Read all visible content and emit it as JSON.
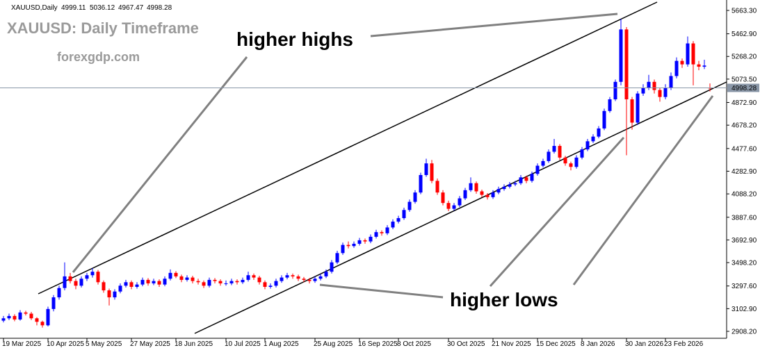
{
  "chart_data": {
    "type": "candlestick",
    "symbol": "XAUUSD,Daily",
    "title": "XAUUSD: Daily Timeframe",
    "subtitle": "forexgdp.com",
    "annotations": [
      "higher highs",
      "higher lows"
    ],
    "up_color": "#0000ff",
    "down_color": "#ff0000",
    "candles": [
      [
        3000,
        3040,
        2985,
        3020
      ],
      [
        3020,
        3060,
        3005,
        3040
      ],
      [
        3040,
        3055,
        2995,
        3010
      ],
      [
        3010,
        3090,
        3000,
        3070
      ],
      [
        3070,
        3085,
        3045,
        3060
      ],
      [
        3060,
        3075,
        3005,
        3020
      ],
      [
        3020,
        3030,
        2960,
        2990
      ],
      [
        2990,
        3000,
        2940,
        2960
      ],
      [
        2960,
        3120,
        2950,
        3100
      ],
      [
        3100,
        3220,
        3080,
        3200
      ],
      [
        3200,
        3300,
        3180,
        3280
      ],
      [
        3280,
        3500,
        3260,
        3380
      ],
      [
        3380,
        3410,
        3320,
        3340
      ],
      [
        3340,
        3360,
        3270,
        3300
      ],
      [
        3300,
        3380,
        3285,
        3360
      ],
      [
        3360,
        3410,
        3340,
        3390
      ],
      [
        3390,
        3450,
        3370,
        3420
      ],
      [
        3420,
        3435,
        3310,
        3330
      ],
      [
        3330,
        3345,
        3240,
        3260
      ],
      [
        3260,
        3275,
        3130,
        3200
      ],
      [
        3200,
        3270,
        3180,
        3250
      ],
      [
        3250,
        3320,
        3235,
        3300
      ],
      [
        3300,
        3350,
        3285,
        3330
      ],
      [
        3330,
        3345,
        3270,
        3290
      ],
      [
        3290,
        3330,
        3275,
        3310
      ],
      [
        3310,
        3370,
        3295,
        3350
      ],
      [
        3350,
        3365,
        3300,
        3320
      ],
      [
        3320,
        3360,
        3305,
        3340
      ],
      [
        3340,
        3355,
        3290,
        3310
      ],
      [
        3310,
        3380,
        3295,
        3360
      ],
      [
        3360,
        3440,
        3345,
        3410
      ],
      [
        3410,
        3425,
        3365,
        3380
      ],
      [
        3380,
        3395,
        3330,
        3350
      ],
      [
        3350,
        3390,
        3335,
        3370
      ],
      [
        3370,
        3385,
        3320,
        3340
      ],
      [
        3340,
        3360,
        3310,
        3330
      ],
      [
        3330,
        3345,
        3280,
        3300
      ],
      [
        3300,
        3370,
        3285,
        3350
      ],
      [
        3350,
        3365,
        3320,
        3340
      ],
      [
        3340,
        3355,
        3300,
        3320
      ],
      [
        3320,
        3345,
        3300,
        3320
      ],
      [
        3320,
        3360,
        3305,
        3340
      ],
      [
        3340,
        3355,
        3310,
        3330
      ],
      [
        3330,
        3370,
        3315,
        3350
      ],
      [
        3350,
        3420,
        3335,
        3390
      ],
      [
        3390,
        3405,
        3350,
        3370
      ],
      [
        3370,
        3385,
        3310,
        3330
      ],
      [
        3330,
        3345,
        3270,
        3290
      ],
      [
        3290,
        3320,
        3275,
        3300
      ],
      [
        3300,
        3360,
        3285,
        3340
      ],
      [
        3340,
        3390,
        3325,
        3370
      ],
      [
        3370,
        3410,
        3355,
        3390
      ],
      [
        3390,
        3405,
        3360,
        3380
      ],
      [
        3380,
        3395,
        3340,
        3360
      ],
      [
        3360,
        3375,
        3330,
        3350
      ],
      [
        3350,
        3365,
        3320,
        3340
      ],
      [
        3340,
        3380,
        3325,
        3360
      ],
      [
        3360,
        3400,
        3345,
        3380
      ],
      [
        3380,
        3440,
        3365,
        3420
      ],
      [
        3420,
        3520,
        3405,
        3500
      ],
      [
        3500,
        3600,
        3485,
        3580
      ],
      [
        3580,
        3670,
        3565,
        3650
      ],
      [
        3650,
        3680,
        3620,
        3640
      ],
      [
        3640,
        3680,
        3625,
        3660
      ],
      [
        3660,
        3710,
        3645,
        3690
      ],
      [
        3690,
        3705,
        3660,
        3680
      ],
      [
        3680,
        3740,
        3665,
        3720
      ],
      [
        3720,
        3780,
        3705,
        3760
      ],
      [
        3760,
        3775,
        3730,
        3750
      ],
      [
        3750,
        3820,
        3735,
        3800
      ],
      [
        3800,
        3870,
        3785,
        3850
      ],
      [
        3850,
        3900,
        3835,
        3880
      ],
      [
        3880,
        3970,
        3865,
        3950
      ],
      [
        3950,
        4040,
        3935,
        4020
      ],
      [
        4020,
        4120,
        4005,
        4100
      ],
      [
        4100,
        4270,
        4085,
        4250
      ],
      [
        4250,
        4390,
        4235,
        4350
      ],
      [
        4350,
        4380,
        4180,
        4200
      ],
      [
        4200,
        4220,
        4080,
        4100
      ],
      [
        4100,
        4120,
        3990,
        4010
      ],
      [
        4010,
        4030,
        3940,
        3960
      ],
      [
        3960,
        4010,
        3945,
        3990
      ],
      [
        3990,
        4070,
        3975,
        4050
      ],
      [
        4050,
        4140,
        4035,
        4120
      ],
      [
        4120,
        4230,
        4105,
        4180
      ],
      [
        4180,
        4195,
        4090,
        4110
      ],
      [
        4110,
        4125,
        4060,
        4080
      ],
      [
        4080,
        4095,
        4040,
        4060
      ],
      [
        4060,
        4120,
        4045,
        4100
      ],
      [
        4100,
        4150,
        4085,
        4130
      ],
      [
        4130,
        4170,
        4115,
        4150
      ],
      [
        4150,
        4190,
        4135,
        4170
      ],
      [
        4170,
        4200,
        4155,
        4180
      ],
      [
        4180,
        4250,
        4165,
        4230
      ],
      [
        4230,
        4245,
        4180,
        4200
      ],
      [
        4200,
        4280,
        4185,
        4260
      ],
      [
        4260,
        4350,
        4245,
        4330
      ],
      [
        4330,
        4390,
        4315,
        4370
      ],
      [
        4370,
        4470,
        4355,
        4450
      ],
      [
        4450,
        4560,
        4435,
        4500
      ],
      [
        4500,
        4515,
        4380,
        4400
      ],
      [
        4400,
        4415,
        4330,
        4350
      ],
      [
        4350,
        4365,
        4290,
        4320
      ],
      [
        4320,
        4420,
        4305,
        4400
      ],
      [
        4400,
        4490,
        4385,
        4470
      ],
      [
        4470,
        4560,
        4455,
        4540
      ],
      [
        4540,
        4600,
        4525,
        4580
      ],
      [
        4580,
        4670,
        4565,
        4650
      ],
      [
        4650,
        4820,
        4635,
        4800
      ],
      [
        4800,
        4920,
        4785,
        4900
      ],
      [
        4900,
        5070,
        4885,
        5050
      ],
      [
        5050,
        5590,
        5020,
        5500
      ],
      [
        5500,
        5520,
        4420,
        4900
      ],
      [
        4900,
        4920,
        4640,
        4700
      ],
      [
        4700,
        4970,
        4680,
        4950
      ],
      [
        4950,
        5030,
        4930,
        5000
      ],
      [
        5000,
        5110,
        4980,
        5050
      ],
      [
        5050,
        5070,
        4950,
        4980
      ],
      [
        4980,
        5000,
        4880,
        4920
      ],
      [
        4920,
        5030,
        4900,
        5000
      ],
      [
        5000,
        5130,
        4980,
        5100
      ],
      [
        5100,
        5260,
        5080,
        5230
      ],
      [
        5230,
        5250,
        5170,
        5200
      ],
      [
        5200,
        5440,
        5180,
        5380
      ],
      [
        5380,
        5400,
        5020,
        5200
      ],
      [
        5200,
        5230,
        5150,
        5180
      ],
      [
        5180,
        5240,
        5160,
        5190
      ],
      [
        4999.11,
        5036.12,
        4967.47,
        4998.28
      ]
    ],
    "xticks": [
      {
        "value": 0,
        "label": "19 Mar 2025"
      },
      {
        "value": 8,
        "label": "10 Apr 2025"
      },
      {
        "value": 15,
        "label": "5 May 2025"
      },
      {
        "value": 23,
        "label": "27 May 2025"
      },
      {
        "value": 31,
        "label": "18 Jun 2025"
      },
      {
        "value": 40,
        "label": "10 Jul 2025"
      },
      {
        "value": 47,
        "label": "1 Aug 2025"
      },
      {
        "value": 56,
        "label": "25 Aug 2025"
      },
      {
        "value": 64,
        "label": "16 Sep 2025"
      },
      {
        "value": 71,
        "label": "8 Oct 2025"
      },
      {
        "value": 80,
        "label": "30 Oct 2025"
      },
      {
        "value": 88,
        "label": "21 Nov 2025"
      },
      {
        "value": 96,
        "label": "15 Dec 2025"
      },
      {
        "value": 104,
        "label": "8 Jan 2026"
      },
      {
        "value": 112,
        "label": "30 Jan 2026"
      },
      {
        "value": 119,
        "label": "23 Feb 2026"
      }
    ],
    "ylim": [
      2848.6,
      5752.7
    ],
    "yticks": [
      {
        "value": 5663.3,
        "label": "5663.30"
      },
      {
        "value": 5462.9,
        "label": "5462.90"
      },
      {
        "value": 5268.2,
        "label": "5268.20"
      },
      {
        "value": 5073.5,
        "label": "5073.50"
      },
      {
        "value": 4872.9,
        "label": "4872.90"
      },
      {
        "value": 4678.2,
        "label": "4678.20"
      },
      {
        "value": 4477.6,
        "label": "4477.60"
      },
      {
        "value": 4282.9,
        "label": "4282.90"
      },
      {
        "value": 4088.2,
        "label": "4088.20"
      },
      {
        "value": 3887.6,
        "label": "3887.60"
      },
      {
        "value": 3692.9,
        "label": "3692.90"
      },
      {
        "value": 3498.2,
        "label": "3498.20"
      },
      {
        "value": 3297.6,
        "label": "3297.60"
      },
      {
        "value": 3102.9,
        "label": "3102.90"
      },
      {
        "value": 2908.2,
        "label": "2908.20"
      }
    ],
    "grid": false
  }
}
